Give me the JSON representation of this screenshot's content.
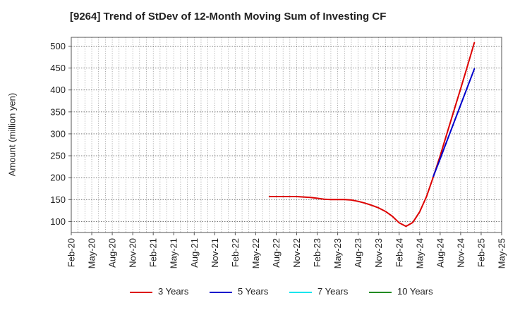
{
  "title": "[9264]  Trend of StDev of 12-Month Moving Sum of Investing CF",
  "chart_data": {
    "type": "line",
    "title": "[9264]  Trend of StDev of 12-Month Moving Sum of Investing CF",
    "ylabel": "Amount (million yen)",
    "xlabel": "",
    "ylim": [
      75,
      520
    ],
    "yticks": [
      100,
      150,
      200,
      250,
      300,
      350,
      400,
      450,
      500
    ],
    "xlim": [
      "2020-02",
      "2025-05"
    ],
    "xticks": [
      "Feb-20",
      "May-20",
      "Aug-20",
      "Nov-20",
      "Feb-21",
      "May-21",
      "Aug-21",
      "Nov-21",
      "Feb-22",
      "May-22",
      "Aug-22",
      "Nov-22",
      "Feb-23",
      "May-23",
      "Aug-23",
      "Nov-23",
      "Feb-24",
      "May-24",
      "Aug-24",
      "Nov-24",
      "Feb-25",
      "May-25"
    ],
    "grid": true,
    "legend_position": "bottom",
    "series": [
      {
        "name": "3 Years",
        "color": "#dd0000",
        "points": [
          [
            "2022-07",
            157
          ],
          [
            "2022-08",
            157
          ],
          [
            "2022-09",
            157
          ],
          [
            "2022-10",
            157
          ],
          [
            "2022-11",
            157
          ],
          [
            "2022-12",
            156
          ],
          [
            "2023-01",
            155
          ],
          [
            "2023-02",
            153
          ],
          [
            "2023-03",
            151
          ],
          [
            "2023-04",
            150
          ],
          [
            "2023-05",
            150
          ],
          [
            "2023-06",
            150
          ],
          [
            "2023-07",
            149
          ],
          [
            "2023-08",
            146
          ],
          [
            "2023-09",
            142
          ],
          [
            "2023-10",
            137
          ],
          [
            "2023-11",
            131
          ],
          [
            "2023-12",
            123
          ],
          [
            "2024-01",
            112
          ],
          [
            "2024-02",
            97
          ],
          [
            "2024-03",
            89
          ],
          [
            "2024-04",
            98
          ],
          [
            "2024-05",
            122
          ],
          [
            "2024-06",
            157
          ],
          [
            "2024-07",
            202
          ],
          [
            "2024-08",
            250
          ],
          [
            "2024-09",
            301
          ],
          [
            "2024-10",
            352
          ],
          [
            "2024-11",
            403
          ],
          [
            "2024-12",
            455
          ],
          [
            "2025-01",
            508
          ]
        ]
      },
      {
        "name": "5 Years",
        "color": "#0000cc",
        "points": [
          [
            "2024-07",
            203
          ],
          [
            "2024-08",
            243
          ],
          [
            "2024-09",
            284
          ],
          [
            "2024-10",
            325
          ],
          [
            "2024-11",
            366
          ],
          [
            "2024-12",
            407
          ],
          [
            "2025-01",
            448
          ]
        ]
      },
      {
        "name": "7 Years",
        "color": "#00e5ee",
        "points": []
      },
      {
        "name": "10 Years",
        "color": "#228b22",
        "points": []
      }
    ]
  }
}
